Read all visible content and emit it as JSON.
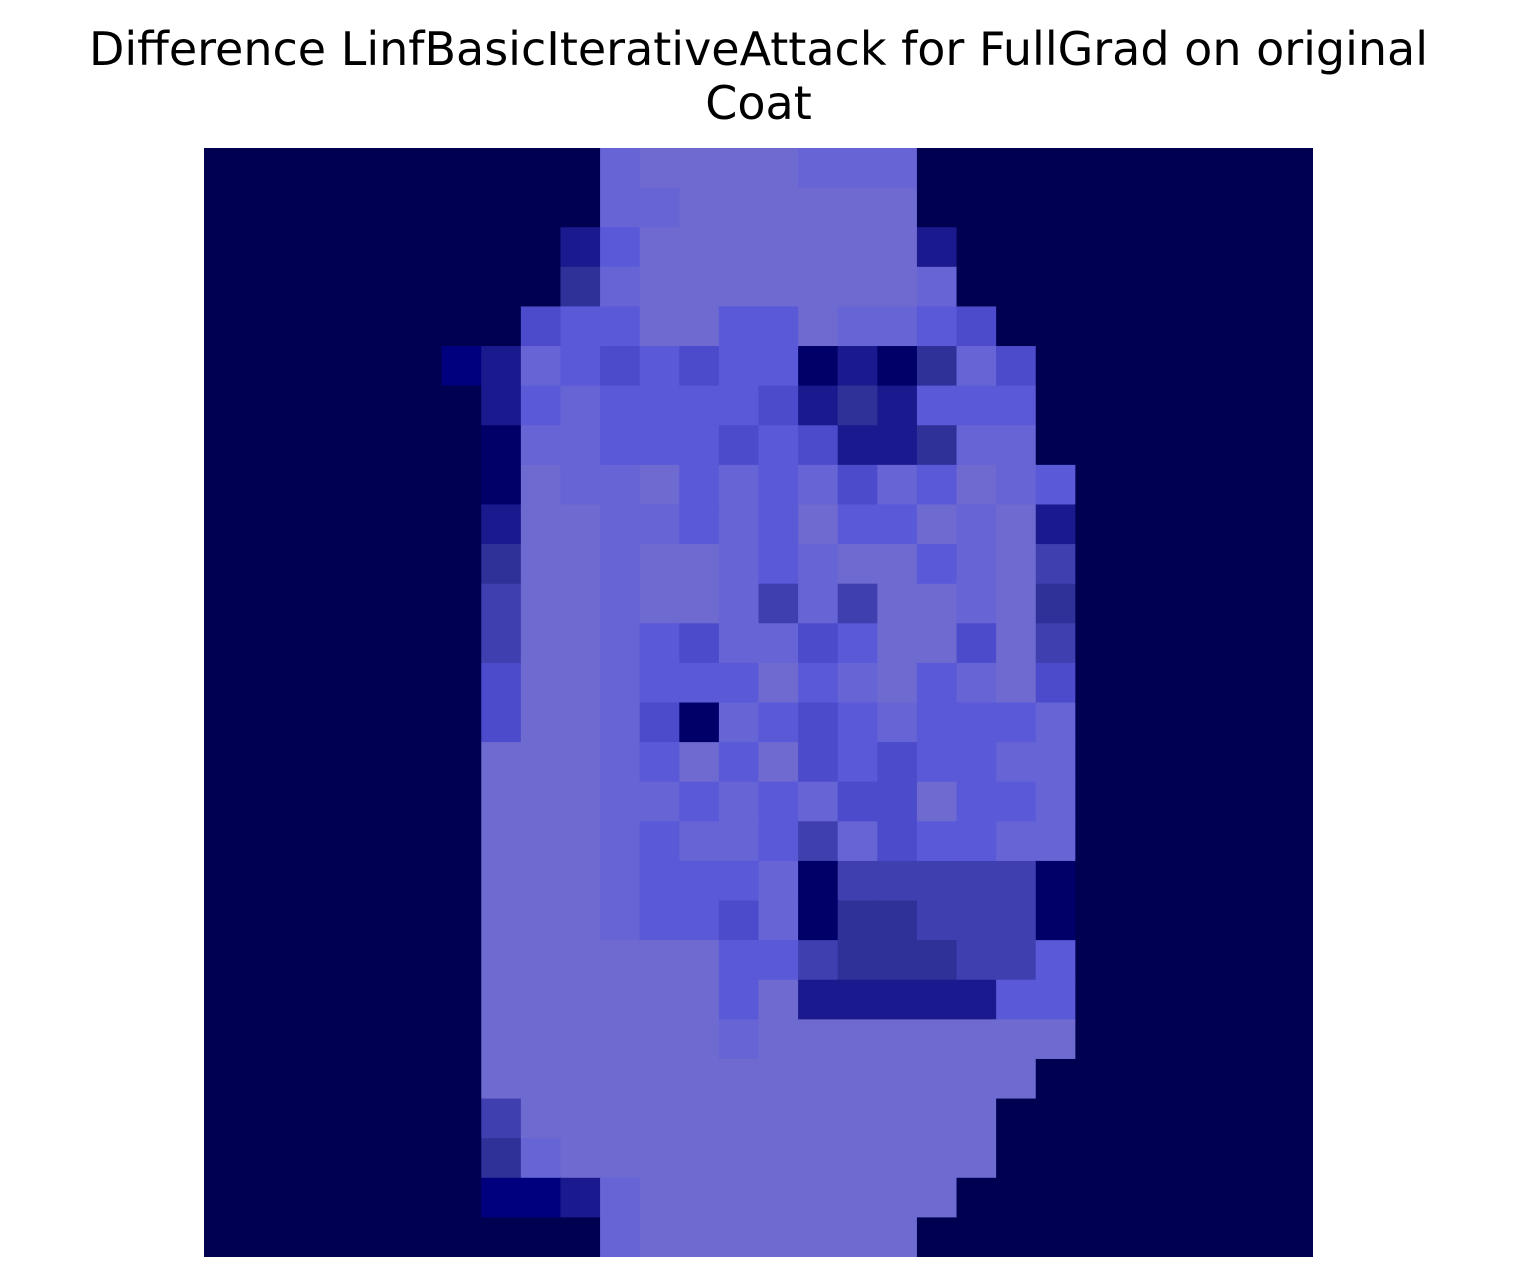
{
  "figure": {
    "title_lines": [
      "Difference LinfBasicIterativeAttack for FullGrad on original",
      "Coat"
    ],
    "image_description_colors": {
      "background_dark": "#000050",
      "coat_body": "#6A68D0",
      "highlight_cyan": "#60E8E8"
    }
  },
  "chart_data": {
    "type": "heatmap",
    "title": "Difference LinfBasicIterativeAttack for FullGrad on original Coat",
    "rows": 28,
    "cols": 28,
    "palette": [
      "#000050",
      "#000068",
      "#00007E",
      "#1A1A8E",
      "#303099",
      "#3F3FB0",
      "#4B4BCC",
      "#5A59D8",
      "#6764D6",
      "#6E6AD0",
      "#7575C8",
      "#8181DE",
      "#6B84E6",
      "#5FA0E6",
      "#57C1E0",
      "#5CDCE6",
      "#78E0C8",
      "#3E5FC9",
      "#2C44A8",
      "#00347E",
      "#003A7A",
      "#004C8C",
      "#62628E",
      "#555599",
      "#7E7EA8"
    ],
    "grid": [
      "0000000000899998880000000000",
      "0000000000889999990000000000",
      "0000000003799999993000000000",
      "0000000004899999998000000000",
      "0000000067799779887600000000",
      "0000002387676771314860000000",
      "0000000378777763437770000000",
      "0000000188777676334880000000",
      "0000000198897878687987000000",
      "0000000399887879779893000000",
      "0000000499899878997895000000",
      "0000000599899858599894000000",
      "0000000599876886799695000000",
      "0000000699877797897896000000",
      "0000000699861876787778000000",
      "0000000999879796767788000000",
      "0000000999887878669778000000",
      "0000000999878875867788000000",
      "0000000999877781555551000000",
      "0000000999877681445551000000",
      "0000000999999775444557000000",
      "0000000999999793333377000000",
      "0000000999999899999999000000",
      "0000000999999999999990000000",
      "0000000599999999999900000000",
      "0000000489999999999900000000",
      "0000000223899999999000000000",
      "0000000000899999990000000000"
    ]
  }
}
